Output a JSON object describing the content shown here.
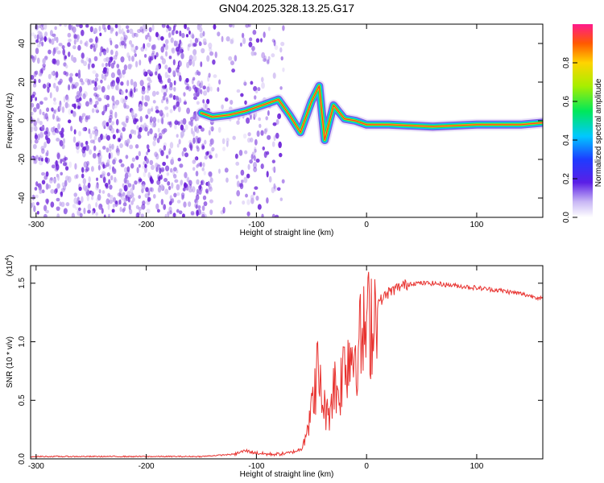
{
  "title": "GN04.2025.328.13.25.G17",
  "chart_data": [
    {
      "type": "heatmap",
      "title": "GN04.2025.328.13.25.G17",
      "xlabel": "Height of straight line (km)",
      "ylabel": "Frequency (Hz)",
      "xlim": [
        -305,
        160
      ],
      "ylim": [
        -50,
        50
      ],
      "x_ticks": [
        -300,
        -200,
        -100,
        0,
        100
      ],
      "y_ticks": [
        -40,
        -20,
        0,
        20,
        40
      ],
      "noise_region_x": [
        -305,
        -75
      ],
      "signal_track": [
        {
          "x": -150,
          "y": 4
        },
        {
          "x": -140,
          "y": 2
        },
        {
          "x": -125,
          "y": 3
        },
        {
          "x": -110,
          "y": 5
        },
        {
          "x": -95,
          "y": 8
        },
        {
          "x": -80,
          "y": 11
        },
        {
          "x": -70,
          "y": 3
        },
        {
          "x": -60,
          "y": -6
        },
        {
          "x": -50,
          "y": 10
        },
        {
          "x": -43,
          "y": 18
        },
        {
          "x": -38,
          "y": -10
        },
        {
          "x": -30,
          "y": 8
        },
        {
          "x": -20,
          "y": 1
        },
        {
          "x": -10,
          "y": 0
        },
        {
          "x": 0,
          "y": -2
        },
        {
          "x": 20,
          "y": -2
        },
        {
          "x": 60,
          "y": -3
        },
        {
          "x": 100,
          "y": -2
        },
        {
          "x": 140,
          "y": -2
        },
        {
          "x": 160,
          "y": -1
        }
      ],
      "colorbar": {
        "label": "Normalized spectral amplitude",
        "range": [
          0,
          1
        ],
        "ticks": [
          "0.0",
          "0.2",
          "0.4",
          "0.6",
          "0.8"
        ]
      }
    },
    {
      "type": "line",
      "xlabel": "Height of straight line (km)",
      "ylabel": "SNR (10 * v/v)",
      "y_multiplier": "(x10",
      "y_multiplier_exp": "4",
      "y_multiplier_close": ")",
      "xlim": [
        -305,
        160
      ],
      "ylim": [
        0,
        1.65
      ],
      "x_ticks": [
        -300,
        -200,
        -100,
        0,
        100
      ],
      "y_ticks": [
        "0.0",
        "0.5",
        "1.0",
        "1.5"
      ],
      "series": [
        {
          "name": "SNR",
          "color": "#e8322f",
          "x": [
            -305,
            -250,
            -200,
            -150,
            -120,
            -110,
            -100,
            -90,
            -80,
            -70,
            -60,
            -50,
            -45,
            -40,
            -35,
            -30,
            -25,
            -20,
            -15,
            -10,
            -5,
            0,
            5,
            10,
            20,
            30,
            40,
            50,
            60,
            70,
            80,
            90,
            100,
            120,
            140,
            160
          ],
          "y": [
            0.02,
            0.02,
            0.02,
            0.02,
            0.04,
            0.07,
            0.05,
            0.04,
            0.04,
            0.05,
            0.08,
            0.4,
            0.75,
            0.5,
            0.35,
            0.65,
            0.55,
            0.85,
            0.9,
            0.95,
            1.0,
            1.1,
            1.22,
            1.33,
            1.42,
            1.47,
            1.5,
            1.5,
            1.5,
            1.49,
            1.48,
            1.47,
            1.46,
            1.44,
            1.41,
            1.37
          ]
        }
      ]
    }
  ]
}
